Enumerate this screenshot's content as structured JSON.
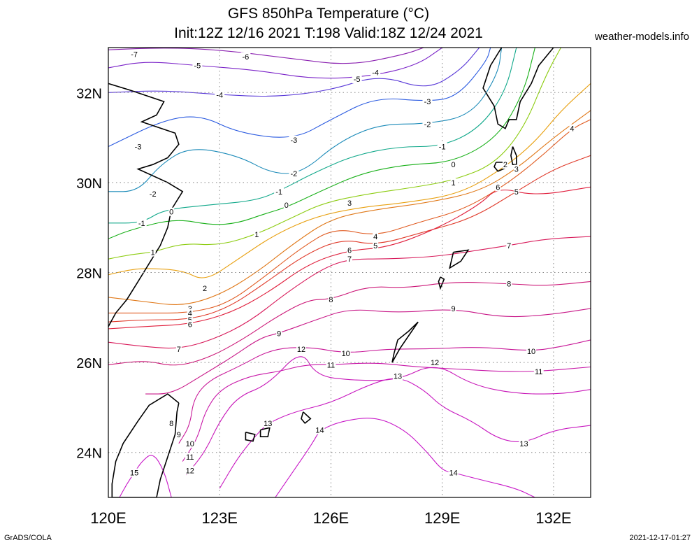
{
  "header": {
    "title_line1": "GFS 850hPa Temperature (°C)",
    "title_line2": "Init:12Z 12/16 2021 T:198 Valid:18Z 12/24 2021",
    "source_site": "weather-models.info"
  },
  "footer": {
    "left": "GrADS/COLA",
    "right": "2021-12-17-01:27"
  },
  "map": {
    "lon_ticks": [
      {
        "lon": 120,
        "label": "120E"
      },
      {
        "lon": 123,
        "label": "123E"
      },
      {
        "lon": 126,
        "label": "126E"
      },
      {
        "lon": 129,
        "label": "129E"
      },
      {
        "lon": 132,
        "label": "132E"
      }
    ],
    "lat_ticks": [
      {
        "lat": 32,
        "label": "32N"
      },
      {
        "lat": 30,
        "label": "30N"
      },
      {
        "lat": 28,
        "label": "28N"
      },
      {
        "lat": 26,
        "label": "26N"
      },
      {
        "lat": 24,
        "label": "24N"
      }
    ],
    "contour_colors": {
      "-7": "#8a1fb0",
      "-6": "#8a1fb0",
      "-5": "#7a22c8",
      "-4": "#5a3ad8",
      "-3": "#2a5ae0",
      "-2": "#1a8ab8",
      "-1": "#10a88a",
      "0": "#18b018",
      "1": "#8ccc10",
      "2": "#e8a010",
      "3": "#e07818",
      "4": "#e05a20",
      "5": "#e03a2a",
      "6": "#e01e3c",
      "7": "#d81a5a",
      "8": "#cc1878",
      "9": "#c81888",
      "10": "#c81898",
      "11": "#c818a8",
      "12": "#c818b8",
      "13": "#c818c0",
      "14": "#c818c8",
      "15": "#c818c8"
    },
    "contour_labels": [
      {
        "text": "-7",
        "lon": 120.7,
        "lat": 32.85
      },
      {
        "text": "-6",
        "lon": 123.7,
        "lat": 32.8
      },
      {
        "text": "-5",
        "lon": 122.4,
        "lat": 32.6
      },
      {
        "text": "-5",
        "lon": 126.7,
        "lat": 32.3
      },
      {
        "text": "-4",
        "lon": 127.2,
        "lat": 32.45
      },
      {
        "text": "-4",
        "lon": 123.0,
        "lat": 31.95
      },
      {
        "text": "-3",
        "lon": 128.6,
        "lat": 31.8
      },
      {
        "text": "-3",
        "lon": 120.8,
        "lat": 30.8
      },
      {
        "text": "-3",
        "lon": 125.0,
        "lat": 30.95
      },
      {
        "text": "-2",
        "lon": 128.6,
        "lat": 31.3
      },
      {
        "text": "-2",
        "lon": 125.0,
        "lat": 30.2
      },
      {
        "text": "-2",
        "lon": 121.2,
        "lat": 29.75
      },
      {
        "text": "-1",
        "lon": 129.0,
        "lat": 30.8
      },
      {
        "text": "-1",
        "lon": 124.6,
        "lat": 29.8
      },
      {
        "text": "-1",
        "lon": 120.9,
        "lat": 29.1
      },
      {
        "text": "0",
        "lon": 129.3,
        "lat": 30.4
      },
      {
        "text": "0",
        "lon": 124.8,
        "lat": 29.5
      },
      {
        "text": "0",
        "lon": 121.7,
        "lat": 29.35
      },
      {
        "text": "1",
        "lon": 129.3,
        "lat": 30.0
      },
      {
        "text": "1",
        "lon": 124.0,
        "lat": 28.85
      },
      {
        "text": "1",
        "lon": 121.2,
        "lat": 28.45
      },
      {
        "text": "2",
        "lon": 130.7,
        "lat": 30.4
      },
      {
        "text": "2",
        "lon": 122.6,
        "lat": 27.65
      },
      {
        "text": "3",
        "lon": 131.0,
        "lat": 30.3
      },
      {
        "text": "3",
        "lon": 126.5,
        "lat": 29.55
      },
      {
        "text": "3",
        "lon": 122.2,
        "lat": 27.2
      },
      {
        "text": "4",
        "lon": 132.5,
        "lat": 31.2
      },
      {
        "text": "4",
        "lon": 127.2,
        "lat": 28.8
      },
      {
        "text": "4",
        "lon": 122.2,
        "lat": 27.1
      },
      {
        "text": "5",
        "lon": 131.0,
        "lat": 29.8
      },
      {
        "text": "5",
        "lon": 127.2,
        "lat": 28.6
      },
      {
        "text": "5",
        "lon": 122.2,
        "lat": 26.95
      },
      {
        "text": "6",
        "lon": 130.5,
        "lat": 29.9
      },
      {
        "text": "6",
        "lon": 126.5,
        "lat": 28.5
      },
      {
        "text": "6",
        "lon": 122.2,
        "lat": 26.85
      },
      {
        "text": "7",
        "lon": 130.8,
        "lat": 28.6
      },
      {
        "text": "7",
        "lon": 126.5,
        "lat": 28.3
      },
      {
        "text": "7",
        "lon": 121.9,
        "lat": 26.3
      },
      {
        "text": "8",
        "lon": 130.8,
        "lat": 27.75
      },
      {
        "text": "8",
        "lon": 126.0,
        "lat": 27.4
      },
      {
        "text": "8",
        "lon": 121.7,
        "lat": 24.65
      },
      {
        "text": "9",
        "lon": 129.3,
        "lat": 27.2
      },
      {
        "text": "9",
        "lon": 124.6,
        "lat": 26.65
      },
      {
        "text": "9",
        "lon": 121.9,
        "lat": 24.4
      },
      {
        "text": "10",
        "lon": 131.4,
        "lat": 26.25
      },
      {
        "text": "10",
        "lon": 126.4,
        "lat": 26.2
      },
      {
        "text": "10",
        "lon": 122.2,
        "lat": 24.2
      },
      {
        "text": "11",
        "lon": 131.6,
        "lat": 25.8
      },
      {
        "text": "11",
        "lon": 126.0,
        "lat": 25.95
      },
      {
        "text": "11",
        "lon": 122.2,
        "lat": 23.9
      },
      {
        "text": "12",
        "lon": 128.8,
        "lat": 26.0
      },
      {
        "text": "12",
        "lon": 125.2,
        "lat": 26.3
      },
      {
        "text": "12",
        "lon": 122.2,
        "lat": 23.6
      },
      {
        "text": "13",
        "lon": 131.2,
        "lat": 24.2
      },
      {
        "text": "13",
        "lon": 127.8,
        "lat": 25.7
      },
      {
        "text": "13",
        "lon": 124.3,
        "lat": 24.65
      },
      {
        "text": "14",
        "lon": 125.7,
        "lat": 24.5
      },
      {
        "text": "14",
        "lon": 129.3,
        "lat": 23.55
      },
      {
        "text": "15",
        "lon": 120.7,
        "lat": 23.55
      }
    ]
  }
}
